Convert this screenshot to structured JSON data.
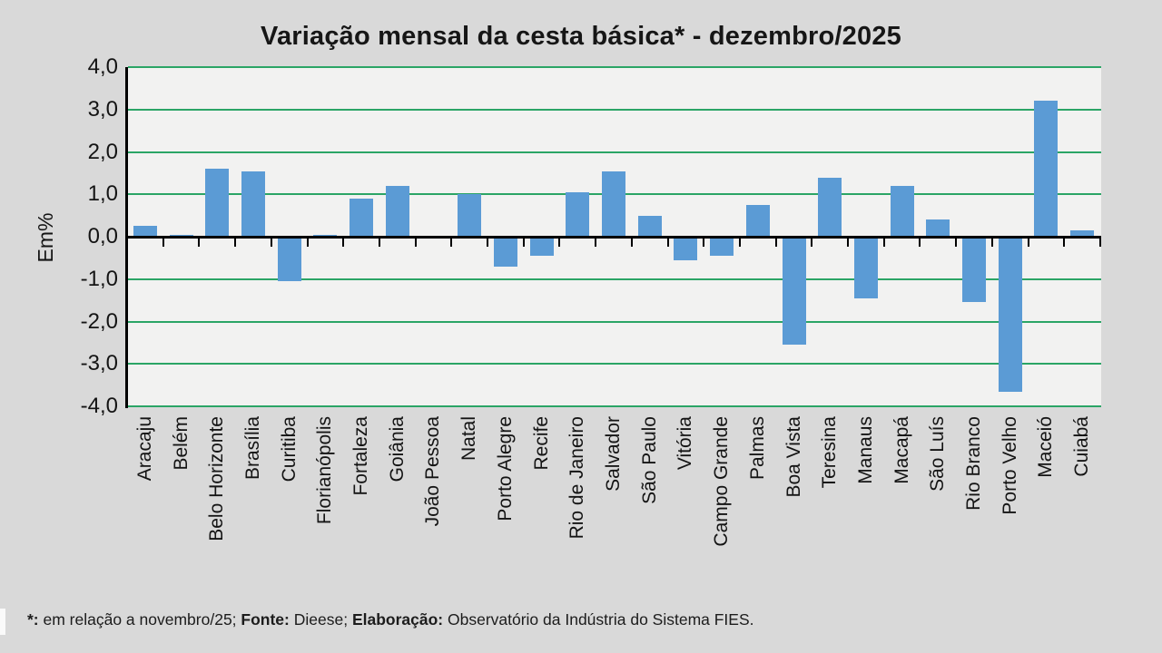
{
  "title": "Variação mensal da cesta básica* - dezembro/2025",
  "colors": {
    "bar": "#5b9bd5",
    "grid": "#2ba566",
    "plot_bg": "#f2f2f1",
    "slide_bg": "#d9d9d9",
    "axis": "#000000"
  },
  "y_axis": {
    "label": "Em%",
    "tick_labels": [
      "4,0",
      "3,0",
      "2,0",
      "1,0",
      "0,0",
      "-1,0",
      "-2,0",
      "-3,0",
      "-4,0"
    ]
  },
  "chart_data": {
    "type": "bar",
    "title": "Variação mensal da cesta básica* - dezembro/2025",
    "xlabel": "",
    "ylabel": "Em%",
    "ylim": [
      -4.0,
      4.0
    ],
    "grid": true,
    "gridline_step": 1.0,
    "legend": "none",
    "categories": [
      "Aracaju",
      "Belém",
      "Belo Horizonte",
      "Brasília",
      "Curitiba",
      "Florianópolis",
      "Fortaleza",
      "Goiânia",
      "João Pessoa",
      "Natal",
      "Porto Alegre",
      "Recife",
      "Rio de Janeiro",
      "Salvador",
      "São Paulo",
      "Vitória",
      "Campo Grande",
      "Palmas",
      "Boa Vista",
      "Teresina",
      "Manaus",
      "Macapá",
      "São Luís",
      "Rio Branco",
      "Porto Velho",
      "Maceió",
      "Cuiabá"
    ],
    "values": [
      0.25,
      0.05,
      1.6,
      1.55,
      -1.05,
      0.05,
      0.9,
      1.2,
      0.0,
      1.0,
      -0.7,
      -0.45,
      1.05,
      1.55,
      0.5,
      -0.55,
      -0.45,
      0.75,
      -2.55,
      1.4,
      -1.45,
      1.2,
      0.4,
      -1.55,
      -3.65,
      3.2,
      0.15
    ]
  },
  "footnote": {
    "segments": [
      {
        "text": "*:",
        "bold": true
      },
      {
        "text": " em relação a novembro/25; ",
        "bold": false
      },
      {
        "text": "Fonte:",
        "bold": true
      },
      {
        "text": " Dieese; ",
        "bold": false
      },
      {
        "text": "Elaboração:",
        "bold": true
      },
      {
        "text": " Observatório da Indústria do Sistema FIES.",
        "bold": false
      }
    ]
  }
}
